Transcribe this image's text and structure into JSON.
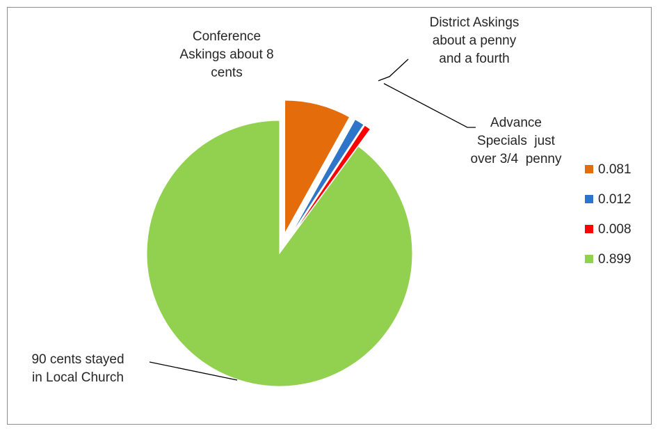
{
  "chart_data": {
    "type": "pie",
    "slices": [
      {
        "value": 0.081,
        "color": "#E46C0A",
        "label": [
          "Conference",
          "Askings about 8",
          "cents"
        ]
      },
      {
        "value": 0.012,
        "color": "#2E75C9",
        "label": [
          "District Askings",
          "about a penny",
          "and a fourth"
        ]
      },
      {
        "value": 0.008,
        "color": "#FF0000",
        "label": [
          "Advance",
          "Specials  just",
          "over 3/4  penny"
        ]
      },
      {
        "value": 0.899,
        "color": "#92D050",
        "label": [
          "90 cents stayed",
          "in Local Church"
        ]
      }
    ],
    "legend": {
      "position": "right",
      "entries": [
        "0.081",
        "0.012",
        "0.008",
        "0.899"
      ]
    }
  }
}
